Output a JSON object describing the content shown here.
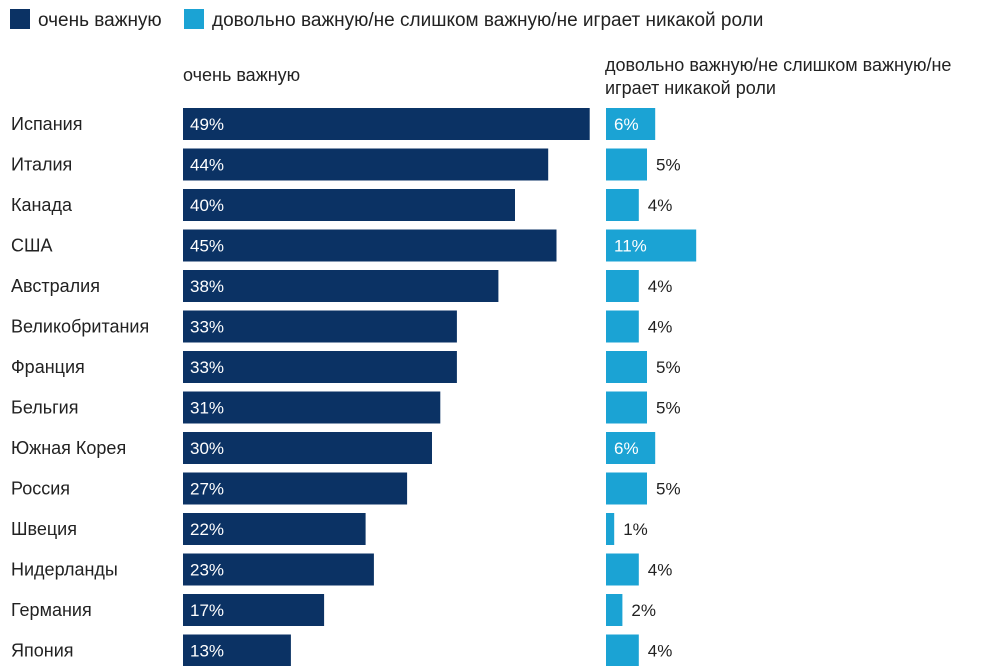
{
  "chart_data": {
    "type": "bar",
    "layout": "horizontal-paired",
    "legend_position": "top-left",
    "colors": {
      "very_important": "#0b3264",
      "other": "#1ba3d4"
    },
    "legend": [
      "очень важную",
      "довольно важную/не слишком важную/не играет никакой роли"
    ],
    "column_headers": {
      "left": "очень важную",
      "right_line1": "довольно важную/не слишком важную/не",
      "right_line2": "играет никакой роли"
    },
    "categories": [
      "Испания",
      "Италия",
      "Канада",
      "США",
      "Австралия",
      "Великобритания",
      "Франция",
      "Бельгия",
      "Южная Корея",
      "Россия",
      "Швеция",
      "Нидерланды",
      "Германия",
      "Япония"
    ],
    "series": [
      {
        "name": "очень важную",
        "values": [
          49,
          44,
          40,
          45,
          38,
          33,
          33,
          31,
          30,
          27,
          22,
          23,
          17,
          13
        ]
      },
      {
        "name": "довольно важную/не слишком важную/не играет никакой роли",
        "values": [
          6,
          5,
          4,
          11,
          4,
          4,
          5,
          5,
          6,
          5,
          1,
          4,
          2,
          4
        ]
      }
    ],
    "value_suffix": "%"
  }
}
